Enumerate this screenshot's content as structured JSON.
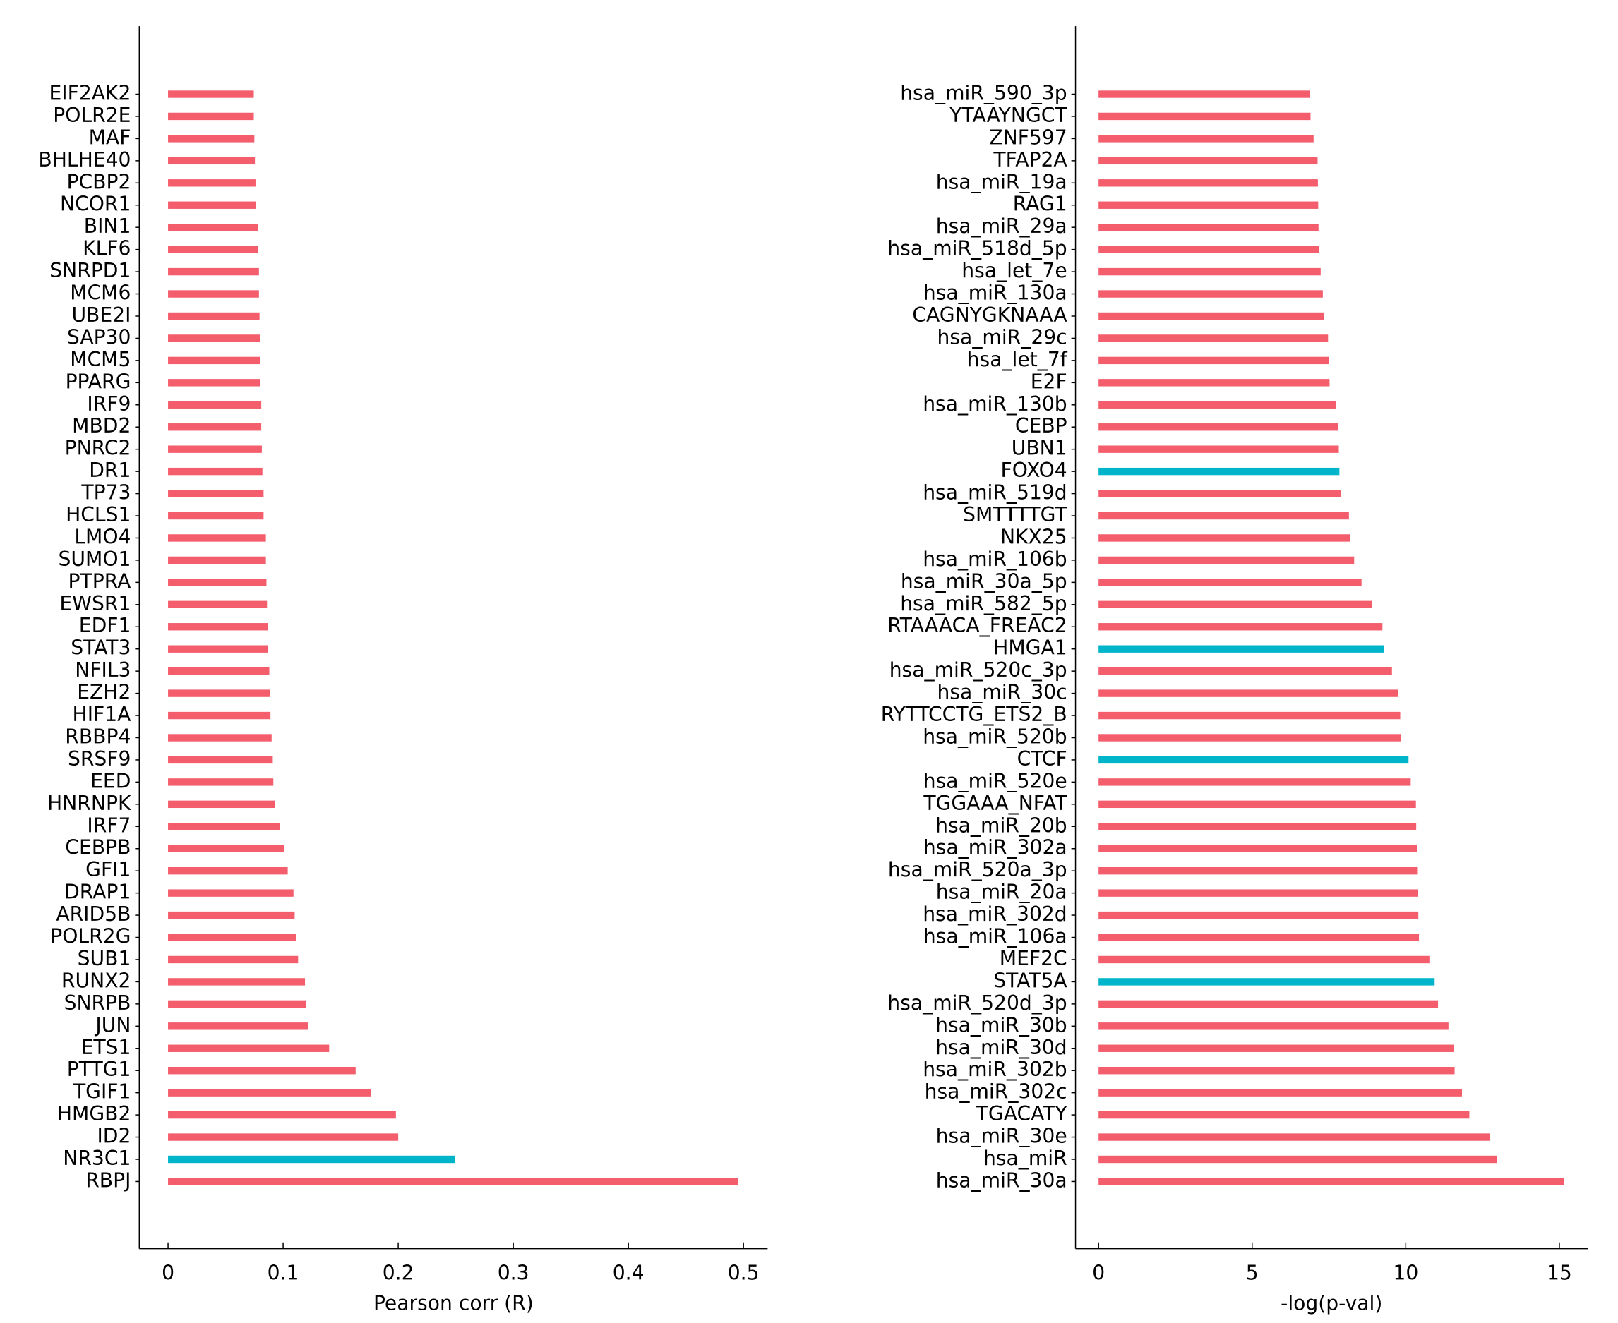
{
  "chart_data": [
    {
      "type": "bar",
      "orientation": "horizontal",
      "xlabel": "Pearson corr (R)",
      "categories": [
        "EIF2AK2",
        "POLR2E",
        "MAF",
        "BHLHE40",
        "PCBP2",
        "NCOR1",
        "BIN1",
        "KLF6",
        "SNRPD1",
        "MCM6",
        "UBE2I",
        "SAP30",
        "MCM5",
        "PPARG",
        "IRF9",
        "MBD2",
        "PNRC2",
        "DR1",
        "TP73",
        "HCLS1",
        "LMO4",
        "SUMO1",
        "PTPRA",
        "EWSR1",
        "EDF1",
        "STAT3",
        "NFIL3",
        "EZH2",
        "HIF1A",
        "RBBP4",
        "SRSF9",
        "EED",
        "HNRNPK",
        "IRF7",
        "CEBPB",
        "GFI1",
        "DRAP1",
        "ARID5B",
        "POLR2G",
        "SUB1",
        "RUNX2",
        "SNRPB",
        "JUN",
        "ETS1",
        "PTTG1",
        "TGIF1",
        "HMGB2",
        "ID2",
        "NR3C1",
        "RBPJ"
      ],
      "values": [
        0.0745,
        0.0745,
        0.075,
        0.0755,
        0.076,
        0.0765,
        0.078,
        0.078,
        0.079,
        0.079,
        0.0795,
        0.08,
        0.08,
        0.08,
        0.081,
        0.081,
        0.0815,
        0.082,
        0.083,
        0.083,
        0.085,
        0.085,
        0.0855,
        0.086,
        0.0865,
        0.087,
        0.088,
        0.0885,
        0.089,
        0.09,
        0.091,
        0.0915,
        0.093,
        0.097,
        0.101,
        0.104,
        0.109,
        0.11,
        0.111,
        0.113,
        0.119,
        0.12,
        0.122,
        0.14,
        0.163,
        0.176,
        0.198,
        0.2,
        0.249,
        0.495
      ],
      "colors": [
        "#f45d6b",
        "#f45d6b",
        "#f45d6b",
        "#f45d6b",
        "#f45d6b",
        "#f45d6b",
        "#f45d6b",
        "#f45d6b",
        "#f45d6b",
        "#f45d6b",
        "#f45d6b",
        "#f45d6b",
        "#f45d6b",
        "#f45d6b",
        "#f45d6b",
        "#f45d6b",
        "#f45d6b",
        "#f45d6b",
        "#f45d6b",
        "#f45d6b",
        "#f45d6b",
        "#f45d6b",
        "#f45d6b",
        "#f45d6b",
        "#f45d6b",
        "#f45d6b",
        "#f45d6b",
        "#f45d6b",
        "#f45d6b",
        "#f45d6b",
        "#f45d6b",
        "#f45d6b",
        "#f45d6b",
        "#f45d6b",
        "#f45d6b",
        "#f45d6b",
        "#f45d6b",
        "#f45d6b",
        "#f45d6b",
        "#f45d6b",
        "#f45d6b",
        "#f45d6b",
        "#f45d6b",
        "#f45d6b",
        "#f45d6b",
        "#f45d6b",
        "#f45d6b",
        "#f45d6b",
        "#00b5c9",
        "#f45d6b"
      ],
      "xlim": [
        -0.025,
        0.521
      ],
      "xticks": [
        0,
        0.1,
        0.2,
        0.3,
        0.4,
        0.5
      ]
    },
    {
      "type": "bar",
      "orientation": "horizontal",
      "xlabel": "-log(p-val)",
      "categories": [
        "hsa_miR_590_3p",
        "YTAAYNGCT",
        "ZNF597",
        "TFAP2A",
        "hsa_miR_19a",
        "RAG1",
        "hsa_miR_29a",
        "hsa_miR_518d_5p",
        "hsa_let_7e",
        "hsa_miR_130a",
        "CAGNYGKNAAA",
        "hsa_miR_29c",
        "hsa_let_7f",
        "E2F",
        "hsa_miR_130b",
        "CEBP",
        "UBN1",
        "FOXO4",
        "hsa_miR_519d",
        "SMTTTTGT",
        "NKX25",
        "hsa_miR_106b",
        "hsa_miR_30a_5p",
        "hsa_miR_582_5p",
        "RTAAACA_FREAC2",
        "HMGA1",
        "hsa_miR_520c_3p",
        "hsa_miR_30c",
        "RYTTCCTG_ETS2_B",
        "hsa_miR_520b",
        "CTCF",
        "hsa_miR_520e",
        "TGGAAA_NFAT",
        "hsa_miR_20b",
        "hsa_miR_302a",
        "hsa_miR_520a_3p",
        "hsa_miR_20a",
        "hsa_miR_302d",
        "hsa_miR_106a",
        "MEF2C",
        "STAT5A",
        "hsa_miR_520d_3p",
        "hsa_miR_30b",
        "hsa_miR_30d",
        "hsa_miR_302b",
        "hsa_miR_302c",
        "TGACATY",
        "hsa_miR_30e",
        "hsa_miR",
        "hsa_miR_30a"
      ],
      "values": [
        6.89,
        6.9,
        7.0,
        7.13,
        7.14,
        7.15,
        7.16,
        7.17,
        7.23,
        7.3,
        7.33,
        7.47,
        7.5,
        7.52,
        7.74,
        7.81,
        7.82,
        7.84,
        7.88,
        8.15,
        8.18,
        8.32,
        8.56,
        8.9,
        9.24,
        9.3,
        9.55,
        9.75,
        9.82,
        9.85,
        10.09,
        10.16,
        10.33,
        10.34,
        10.36,
        10.37,
        10.4,
        10.41,
        10.43,
        10.77,
        10.94,
        11.05,
        11.39,
        11.56,
        11.59,
        11.83,
        12.07,
        12.75,
        12.96,
        15.14
      ],
      "colors": [
        "#f45d6b",
        "#f45d6b",
        "#f45d6b",
        "#f45d6b",
        "#f45d6b",
        "#f45d6b",
        "#f45d6b",
        "#f45d6b",
        "#f45d6b",
        "#f45d6b",
        "#f45d6b",
        "#f45d6b",
        "#f45d6b",
        "#f45d6b",
        "#f45d6b",
        "#f45d6b",
        "#f45d6b",
        "#00b5c9",
        "#f45d6b",
        "#f45d6b",
        "#f45d6b",
        "#f45d6b",
        "#f45d6b",
        "#f45d6b",
        "#f45d6b",
        "#00b5c9",
        "#f45d6b",
        "#f45d6b",
        "#f45d6b",
        "#f45d6b",
        "#00b5c9",
        "#f45d6b",
        "#f45d6b",
        "#f45d6b",
        "#f45d6b",
        "#f45d6b",
        "#f45d6b",
        "#f45d6b",
        "#f45d6b",
        "#f45d6b",
        "#00b5c9",
        "#f45d6b",
        "#f45d6b",
        "#f45d6b",
        "#f45d6b",
        "#f45d6b",
        "#f45d6b",
        "#f45d6b",
        "#f45d6b",
        "#f45d6b"
      ],
      "xlim": [
        -0.75,
        15.92
      ],
      "xticks": [
        0,
        5,
        10,
        15
      ]
    }
  ]
}
